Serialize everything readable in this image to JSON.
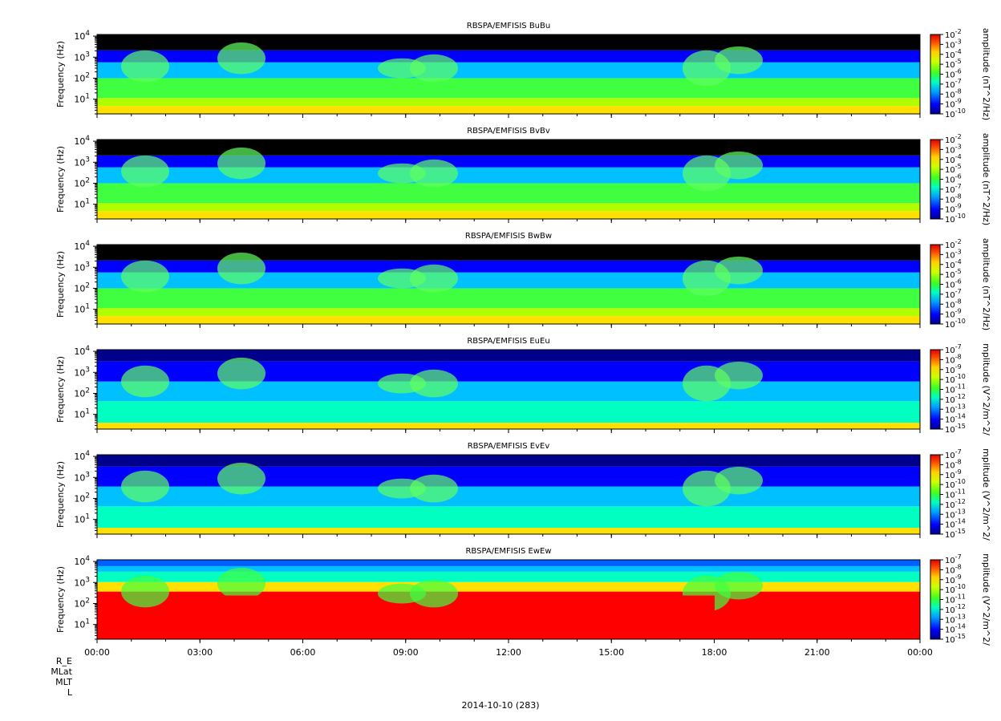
{
  "figure": {
    "date_label": "2014-10-10 (283)",
    "ephemeris_labels": [
      "R_E",
      "MLat",
      "MLT",
      "L"
    ]
  },
  "chart_data": [
    {
      "type": "heatmap",
      "title": "RBSPA/EMFISIS  BuBu",
      "ylabel": "Frequency (Hz)",
      "yscale": "log",
      "ylim": [
        2,
        12000
      ],
      "yticks": [
        "10^1",
        "10^2",
        "10^3",
        "10^4"
      ],
      "xticks": [
        "00:00",
        "03:00",
        "06:00",
        "09:00",
        "12:00",
        "15:00",
        "18:00",
        "21:00",
        "00:00"
      ],
      "colorbar": {
        "label": "amplitude (nT^2/Hz)",
        "scale": "log",
        "ticks": [
          "10^-2",
          "10^-3",
          "10^-4",
          "10^-5",
          "10^-6",
          "10^-7",
          "10^-8",
          "10^-9",
          "10^-10"
        ]
      }
    },
    {
      "type": "heatmap",
      "title": "RBSPA/EMFISIS  BvBv",
      "ylabel": "Frequency (Hz)",
      "yscale": "log",
      "ylim": [
        2,
        12000
      ],
      "yticks": [
        "10^1",
        "10^2",
        "10^3",
        "10^4"
      ],
      "xticks": [
        "00:00",
        "03:00",
        "06:00",
        "09:00",
        "12:00",
        "15:00",
        "18:00",
        "21:00",
        "00:00"
      ],
      "colorbar": {
        "label": "amplitude (nT^2/Hz)",
        "scale": "log",
        "ticks": [
          "10^-2",
          "10^-3",
          "10^-4",
          "10^-5",
          "10^-6",
          "10^-7",
          "10^-8",
          "10^-9",
          "10^-10"
        ]
      }
    },
    {
      "type": "heatmap",
      "title": "RBSPA/EMFISIS  BwBw",
      "ylabel": "Frequency (Hz)",
      "yscale": "log",
      "ylim": [
        2,
        12000
      ],
      "yticks": [
        "10^1",
        "10^2",
        "10^3",
        "10^4"
      ],
      "xticks": [
        "00:00",
        "03:00",
        "06:00",
        "09:00",
        "12:00",
        "15:00",
        "18:00",
        "21:00",
        "00:00"
      ],
      "colorbar": {
        "label": "amplitude (nT^2/Hz)",
        "scale": "log",
        "ticks": [
          "10^-2",
          "10^-3",
          "10^-4",
          "10^-5",
          "10^-6",
          "10^-7",
          "10^-8",
          "10^-9",
          "10^-10"
        ]
      }
    },
    {
      "type": "heatmap",
      "title": "RBSPA/EMFISIS  EuEu",
      "ylabel": "Frequency (Hz)",
      "yscale": "log",
      "ylim": [
        2,
        12000
      ],
      "yticks": [
        "10^1",
        "10^2",
        "10^3",
        "10^4"
      ],
      "xticks": [
        "00:00",
        "03:00",
        "06:00",
        "09:00",
        "12:00",
        "15:00",
        "18:00",
        "21:00",
        "00:00"
      ],
      "colorbar": {
        "label": "mplitude (V^2/m^2/",
        "scale": "log",
        "ticks": [
          "10^-7",
          "10^-8",
          "10^-9",
          "10^-10",
          "10^-11",
          "10^-12",
          "10^-13",
          "10^-14",
          "10^-15"
        ]
      }
    },
    {
      "type": "heatmap",
      "title": "RBSPA/EMFISIS  EvEv",
      "ylabel": "Frequency (Hz)",
      "yscale": "log",
      "ylim": [
        2,
        12000
      ],
      "yticks": [
        "10^1",
        "10^2",
        "10^3",
        "10^4"
      ],
      "xticks": [
        "00:00",
        "03:00",
        "06:00",
        "09:00",
        "12:00",
        "15:00",
        "18:00",
        "21:00",
        "00:00"
      ],
      "colorbar": {
        "label": "mplitude (V^2/m^2/",
        "scale": "log",
        "ticks": [
          "10^-7",
          "10^-8",
          "10^-9",
          "10^-10",
          "10^-11",
          "10^-12",
          "10^-13",
          "10^-14",
          "10^-15"
        ]
      }
    },
    {
      "type": "heatmap",
      "title": "RBSPA/EMFISIS  EwEw",
      "ylabel": "Frequency (Hz)",
      "yscale": "log",
      "ylim": [
        2,
        12000
      ],
      "yticks": [
        "10^1",
        "10^2",
        "10^3",
        "10^4"
      ],
      "xticks": [
        "00:00",
        "03:00",
        "06:00",
        "09:00",
        "12:00",
        "15:00",
        "18:00",
        "21:00",
        "00:00"
      ],
      "colorbar": {
        "label": "mplitude (V^2/m^2/",
        "scale": "log",
        "ticks": [
          "10^-7",
          "10^-8",
          "10^-9",
          "10^-10",
          "10^-11",
          "10^-12",
          "10^-13",
          "10^-14",
          "10^-15"
        ]
      }
    }
  ]
}
